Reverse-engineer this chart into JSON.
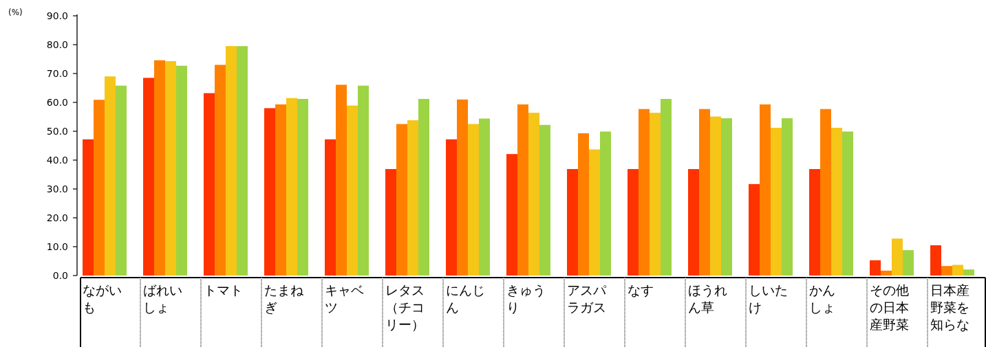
{
  "chart_data": {
    "type": "bar",
    "ylabel": "(%)",
    "categories": [
      "ながいも",
      "ばれいしょ",
      "トマト",
      "たまねぎ",
      "キャベツ",
      "レタス（チコリー）",
      "にんじん",
      "きゅうり",
      "アスパラガス",
      "なす",
      "ほうれん草",
      "しいたけ",
      "かんしょ",
      "その他の日本産野菜",
      "日本産野菜を知らな"
    ],
    "series": [
      {
        "color": "#ff3300",
        "values": [
          47.2,
          68.5,
          63.2,
          58.0,
          47.2,
          36.9,
          47.2,
          42.1,
          36.9,
          36.9,
          36.9,
          31.7,
          36.9,
          5.3,
          10.5
        ]
      },
      {
        "color": "#ff8000",
        "values": [
          60.9,
          74.6,
          73.0,
          59.3,
          66.1,
          52.5,
          61.0,
          59.3,
          49.3,
          57.7,
          57.7,
          59.3,
          57.7,
          1.7,
          3.3
        ]
      },
      {
        "color": "#f5c518",
        "values": [
          69.0,
          74.3,
          79.5,
          61.5,
          58.9,
          53.8,
          52.5,
          56.4,
          43.7,
          56.4,
          55.1,
          51.2,
          51.2,
          12.8,
          3.7
        ]
      },
      {
        "color": "#9dd444",
        "values": [
          65.8,
          72.7,
          79.5,
          61.2,
          65.8,
          61.2,
          54.4,
          52.2,
          49.9,
          61.2,
          54.5,
          54.5,
          49.9,
          8.8,
          2.1
        ]
      }
    ],
    "ylim": [
      0,
      90
    ],
    "yticks": [
      {
        "value": 0,
        "label": "0.0"
      },
      {
        "value": 10,
        "label": "10.0"
      },
      {
        "value": 20,
        "label": "20.0"
      },
      {
        "value": 30,
        "label": "30.0"
      },
      {
        "value": 40,
        "label": "40.0"
      },
      {
        "value": 50,
        "label": "50.0"
      },
      {
        "value": 60,
        "label": "60.0"
      },
      {
        "value": 70,
        "label": "70.0"
      },
      {
        "value": 80,
        "label": "80.0"
      },
      {
        "value": 90,
        "label": "90.0"
      }
    ],
    "grid": false
  }
}
